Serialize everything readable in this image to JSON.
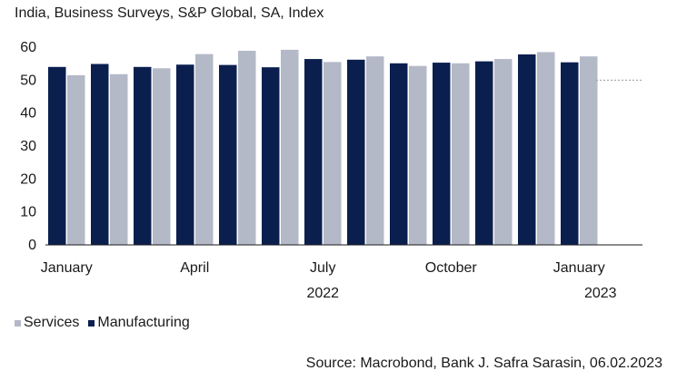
{
  "title": "India, Business Surveys, S&P Global, SA, Index",
  "source": "Source: Macrobond, Bank J. Safra Sarasin, 06.02.2023",
  "colors": {
    "manufacturing": "#0b1f4f",
    "services": "#b4b9c8",
    "reference": "#9a9a9a"
  },
  "chart_data": {
    "type": "bar",
    "title": "India, Business Surveys, S&P Global, SA, Index",
    "xlabel": "",
    "ylabel": "",
    "ylim": [
      0,
      60
    ],
    "yticks": [
      0,
      10,
      20,
      30,
      40,
      50,
      60
    ],
    "reference_line": 50,
    "categories": [
      "Jan 2022",
      "Feb 2022",
      "Mar 2022",
      "Apr 2022",
      "May 2022",
      "Jun 2022",
      "Jul 2022",
      "Aug 2022",
      "Sep 2022",
      "Oct 2022",
      "Nov 2022",
      "Dec 2022",
      "Jan 2023"
    ],
    "x_tick_labels": [
      {
        "index": 0,
        "label": "January"
      },
      {
        "index": 3,
        "label": "April"
      },
      {
        "index": 6,
        "label": "July"
      },
      {
        "index": 9,
        "label": "October"
      },
      {
        "index": 12,
        "label": "January"
      }
    ],
    "year_labels": [
      {
        "index": 6,
        "label": "2022"
      },
      {
        "index": 12.5,
        "label": "2023"
      }
    ],
    "series": [
      {
        "name": "Manufacturing",
        "values": [
          54.0,
          54.9,
          54.0,
          54.7,
          54.6,
          53.9,
          56.4,
          56.2,
          55.1,
          55.3,
          55.7,
          57.8,
          55.4
        ]
      },
      {
        "name": "Services",
        "values": [
          51.5,
          51.8,
          53.6,
          57.9,
          58.9,
          59.2,
          55.5,
          57.2,
          54.3,
          55.1,
          56.4,
          58.5,
          57.2
        ]
      }
    ],
    "legend": {
      "position": "bottom-left",
      "entries": [
        "Services",
        "Manufacturing"
      ]
    },
    "grid": false
  }
}
